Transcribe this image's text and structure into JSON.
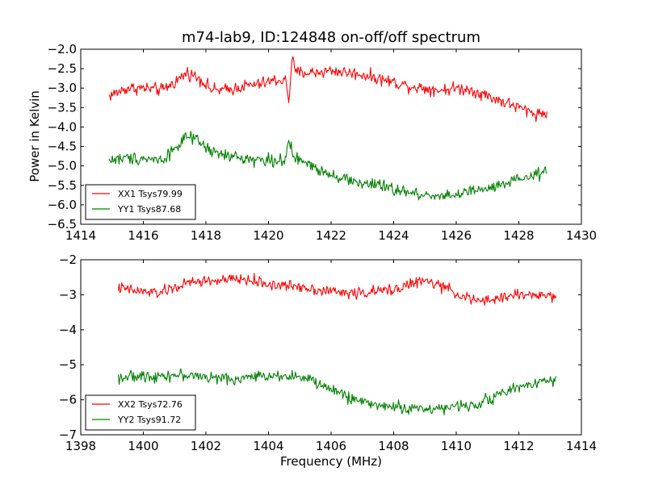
{
  "chart_data": [
    {
      "type": "line",
      "title": "m74-lab9, ID:124848 on-off/off spectrum",
      "xlabel": "",
      "ylabel": "Power in Kelvin",
      "xlim": [
        1414,
        1430
      ],
      "ylim": [
        -6.5,
        -2.0
      ],
      "xticks": [
        1414,
        1416,
        1418,
        1420,
        1422,
        1424,
        1426,
        1428,
        1430
      ],
      "yticks": [
        -6.5,
        -6.0,
        -5.5,
        -5.0,
        -4.5,
        -4.0,
        -3.5,
        -3.0,
        -2.5,
        -2.0
      ],
      "xtick_labels": [
        "1414",
        "1416",
        "1418",
        "1420",
        "1422",
        "1424",
        "1426",
        "1428",
        "1430"
      ],
      "ytick_labels": [
        "−6.5",
        "−6.0",
        "−5.5",
        "−5.0",
        "−4.5",
        "−4.0",
        "−3.5",
        "−3.0",
        "−2.5",
        "−2.0"
      ],
      "legend_position": "lower-left",
      "grid": false,
      "series": [
        {
          "name": "XX1 Tsys79.99",
          "color": "#ff0000",
          "x": [
            1414.9,
            1415.5,
            1416.0,
            1416.6,
            1417.0,
            1417.4,
            1417.8,
            1418.2,
            1418.7,
            1419.2,
            1419.7,
            1420.2,
            1420.55,
            1420.65,
            1420.75,
            1420.85,
            1421.0,
            1421.5,
            1422.0,
            1422.5,
            1423.0,
            1423.5,
            1424.0,
            1424.5,
            1425.0,
            1425.5,
            1426.0,
            1426.5,
            1427.0,
            1427.5,
            1428.0,
            1428.5,
            1428.9
          ],
          "y": [
            -3.2,
            -3.0,
            -3.0,
            -3.05,
            -2.85,
            -2.6,
            -2.75,
            -3.05,
            -3.05,
            -2.95,
            -2.9,
            -2.8,
            -2.8,
            -3.35,
            -2.2,
            -2.6,
            -2.6,
            -2.6,
            -2.55,
            -2.6,
            -2.65,
            -2.75,
            -2.85,
            -2.95,
            -3.0,
            -3.05,
            -3.0,
            -3.05,
            -3.2,
            -3.35,
            -3.5,
            -3.65,
            -3.65
          ]
        },
        {
          "name": "YY1 Tsys87.68",
          "color": "#008000",
          "x": [
            1414.9,
            1415.5,
            1416.0,
            1416.6,
            1417.0,
            1417.4,
            1417.8,
            1418.2,
            1418.7,
            1419.2,
            1419.7,
            1420.2,
            1420.55,
            1420.65,
            1420.75,
            1420.85,
            1421.0,
            1421.5,
            1422.0,
            1422.5,
            1423.0,
            1423.5,
            1424.0,
            1424.5,
            1425.0,
            1425.5,
            1426.0,
            1426.5,
            1427.0,
            1427.5,
            1428.0,
            1428.5,
            1428.9
          ],
          "y": [
            -4.85,
            -4.8,
            -4.8,
            -4.85,
            -4.55,
            -4.25,
            -4.4,
            -4.65,
            -4.75,
            -4.8,
            -4.85,
            -4.85,
            -4.85,
            -4.4,
            -4.65,
            -4.8,
            -4.85,
            -5.05,
            -5.2,
            -5.35,
            -5.45,
            -5.5,
            -5.6,
            -5.7,
            -5.75,
            -5.75,
            -5.75,
            -5.65,
            -5.6,
            -5.5,
            -5.35,
            -5.25,
            -5.15
          ]
        }
      ]
    },
    {
      "type": "line",
      "title": "",
      "xlabel": "Frequency (MHz)",
      "ylabel": "",
      "xlim": [
        1398,
        1414
      ],
      "ylim": [
        -7,
        -2
      ],
      "xticks": [
        1398,
        1400,
        1402,
        1404,
        1406,
        1408,
        1410,
        1412,
        1414
      ],
      "yticks": [
        -7,
        -6,
        -5,
        -4,
        -3,
        -2
      ],
      "xtick_labels": [
        "1398",
        "1400",
        "1402",
        "1404",
        "1406",
        "1408",
        "1410",
        "1412",
        "1414"
      ],
      "ytick_labels": [
        "−7",
        "−6",
        "−5",
        "−4",
        "−3",
        "−2"
      ],
      "legend_position": "lower-left",
      "grid": false,
      "series": [
        {
          "name": "XX2 Tsys72.76",
          "color": "#ff0000",
          "x": [
            1399.2,
            1399.8,
            1400.5,
            1401.0,
            1401.5,
            1402.0,
            1402.5,
            1403.0,
            1403.5,
            1404.0,
            1404.5,
            1405.0,
            1405.5,
            1406.0,
            1406.5,
            1407.0,
            1407.5,
            1408.0,
            1408.5,
            1409.0,
            1409.5,
            1410.0,
            1410.5,
            1411.0,
            1411.5,
            1412.0,
            1412.5,
            1413.2
          ],
          "y": [
            -2.8,
            -2.9,
            -2.95,
            -2.8,
            -2.65,
            -2.6,
            -2.6,
            -2.55,
            -2.6,
            -2.7,
            -2.75,
            -2.75,
            -2.85,
            -2.9,
            -2.95,
            -2.95,
            -2.9,
            -2.85,
            -2.7,
            -2.6,
            -2.75,
            -2.95,
            -3.15,
            -3.2,
            -3.05,
            -3.0,
            -3.0,
            -3.05
          ]
        },
        {
          "name": "YY2 Tsys91.72",
          "color": "#008000",
          "x": [
            1399.2,
            1399.8,
            1400.5,
            1401.0,
            1401.5,
            1402.0,
            1402.5,
            1403.0,
            1403.5,
            1404.0,
            1404.5,
            1405.0,
            1405.5,
            1406.0,
            1406.5,
            1407.0,
            1407.5,
            1408.0,
            1408.5,
            1409.0,
            1409.5,
            1410.0,
            1410.5,
            1411.0,
            1411.5,
            1412.0,
            1412.5,
            1413.2
          ],
          "y": [
            -5.35,
            -5.35,
            -5.3,
            -5.3,
            -5.3,
            -5.35,
            -5.4,
            -5.4,
            -5.35,
            -5.3,
            -5.3,
            -5.35,
            -5.5,
            -5.7,
            -5.9,
            -6.05,
            -6.15,
            -6.2,
            -6.25,
            -6.25,
            -6.25,
            -6.2,
            -6.15,
            -6.0,
            -5.8,
            -5.65,
            -5.5,
            -5.4
          ]
        }
      ]
    }
  ]
}
